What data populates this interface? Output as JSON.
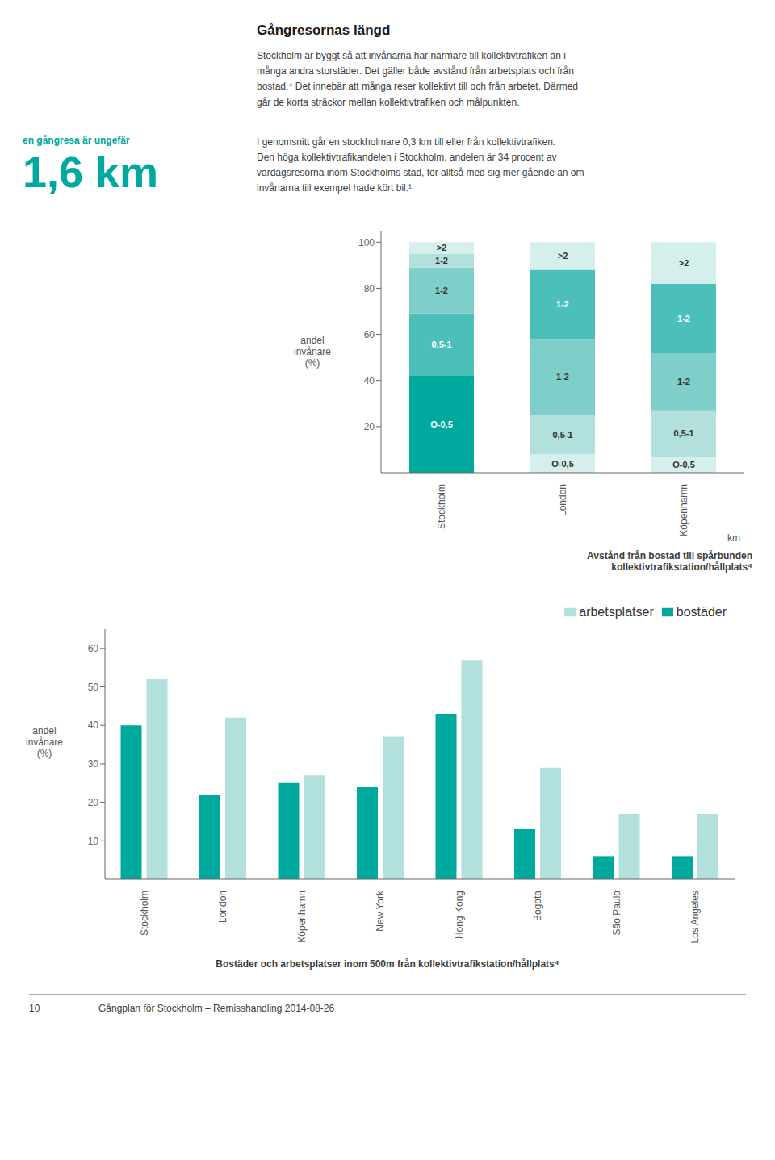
{
  "title": "Gångresornas längd",
  "annotations": [
    "Stockholm är byggt så att invånarna har närmare till kollektivtrafiken än i\nmånga andra storstäder. Det gäller både avstånd från arbetsplats och från\nbostad.⁴ Det innebär att många reser kollektivt till och från arbetet. Därmed\ngår de korta sträckor mellan kollektivtrafiken och målpunkten.",
    "en gångresa är ungefär",
    "1,6 km",
    "I genomsnitt går en stockholmare 0,3 km till eller från kollektivtrafiken.\nDen höga kollektivtrafikandelen i Stockholm, andelen är 34 procent av\nvardagsresorna inom Stockholms stad, för alltså med sig mer gående än om\ninvånarna till exempel hade kört bil.¹",
    "10",
    "Gångplan för Stockholm – Remisshandling 2014-08-26"
  ],
  "chart_data": [
    {
      "type": "bar",
      "title": "Avstånd från bostad till spårbunden\nkollektivtrafikstation/hållplats⁴",
      "categories": [
        "Stockholm",
        "London",
        "Köpenhamn"
      ],
      "xlabel": "km",
      "ylabel": "andel\ninvånare\n(%)",
      "series": [
        {
          "name": "O-0,5",
          "values": [
            42,
            8,
            7
          ],
          "colors": [
            "#00A99D",
            "#D5EFED",
            "#D5EFED"
          ]
        },
        {
          "name": "0,5-1",
          "values": [
            27,
            17,
            20
          ],
          "colors": [
            "#4CBFBA",
            "#B2E0DC",
            "#B2E0DC"
          ]
        },
        {
          "name": "1-2",
          "values": [
            20,
            33,
            25
          ],
          "colors": [
            "#7ECEC9",
            "#7ECEC9",
            "#7ECEC9"
          ]
        },
        {
          "name": "1-2",
          "values": [
            6,
            30,
            30
          ],
          "colors": [
            "#B2E0DC",
            "#4CBFBA",
            "#4CBFBA"
          ]
        },
        {
          "name": ">2",
          "values": [
            5,
            12,
            18
          ],
          "colors": [
            "#D5EFED",
            "#D5EFED",
            "#D5EFED"
          ]
        }
      ],
      "stacked": true,
      "ylim": [
        0,
        105
      ],
      "yticks": [
        20,
        40,
        60,
        80,
        100
      ],
      "grid": false
    },
    {
      "type": "bar",
      "title": "Bostäder och arbetsplatser inom 500m från kollektivtrafikstation/hållplats⁴",
      "categories": [
        "Stockholm",
        "London",
        "Köpenhamn",
        "New York",
        "Hong Kong",
        "Bogota",
        "São Paulo",
        "Los Angeles"
      ],
      "ylabel": "andel\ninvånare\n(%)",
      "series": [
        {
          "name": "bostäder",
          "color": "#00A99D",
          "values": [
            40,
            22,
            25,
            24,
            43,
            13,
            6,
            6
          ]
        },
        {
          "name": "arbetsplatser",
          "color": "#B2E0DC",
          "values": [
            52,
            42,
            27,
            37,
            57,
            29,
            17,
            17
          ]
        }
      ],
      "ylim": [
        0,
        65
      ],
      "yticks": [
        10,
        20,
        30,
        40,
        50,
        60
      ],
      "grid": false,
      "legend": "upper right"
    }
  ]
}
